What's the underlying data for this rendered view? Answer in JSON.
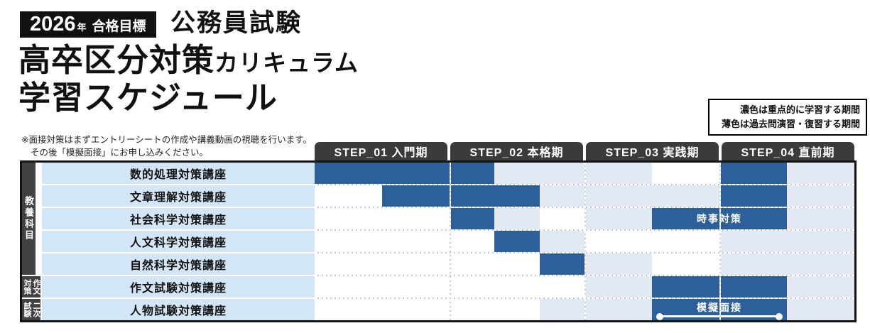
{
  "header": {
    "badge_year": "2026",
    "badge_year_unit": "年",
    "badge_goal": "合格目標",
    "exam_title": "公務員試験",
    "title_main": "高卒区分対策",
    "title_main_sub": "カリキュラム",
    "title_line2": "学習スケジュール"
  },
  "note": {
    "line1": "※面接対策はまずエントリーシートの作成や講義動画の視聴を行います。",
    "line2": "その後「模擬面接」にお申し込みください。"
  },
  "legend": {
    "line1": "濃色は重点的に学習する期間",
    "line2": "薄色は過去問演習・復習する期間"
  },
  "schedule": {
    "timeline_units": 12,
    "steps": [
      "STEP_01 入門期",
      "STEP_02 本格期",
      "STEP_03 実践期",
      "STEP_04 直前期"
    ],
    "groups": [
      {
        "label": "教養科目",
        "display": "教養科目",
        "row_span": 5,
        "columns": 1
      },
      {
        "label": "作文対策",
        "display": "作文\n対策",
        "row_span": 1,
        "columns": 2
      },
      {
        "label": "二次試験",
        "display": "二次\n試験",
        "row_span": 1,
        "columns": 2
      }
    ],
    "rows": [
      {
        "label": "数的処理対策講座",
        "segments": [
          {
            "start": 0,
            "end": 4,
            "style": "dark"
          },
          {
            "start": 4,
            "end": 7.5,
            "style": "light"
          },
          {
            "start": 9,
            "end": 10.5,
            "style": "dark"
          },
          {
            "start": 10.5,
            "end": 12,
            "style": "light"
          }
        ]
      },
      {
        "label": "文章理解対策講座",
        "segments": [
          {
            "start": 1.5,
            "end": 5,
            "style": "dark"
          },
          {
            "start": 5,
            "end": 9,
            "style": "light"
          },
          {
            "start": 9,
            "end": 10.5,
            "style": "dark"
          },
          {
            "start": 10.5,
            "end": 12,
            "style": "light"
          }
        ]
      },
      {
        "label": "社会科学対策講座",
        "segments": [
          {
            "start": 3,
            "end": 4,
            "style": "dark"
          },
          {
            "start": 4,
            "end": 5,
            "style": "light"
          },
          {
            "start": 6,
            "end": 7.5,
            "style": "light"
          },
          {
            "start": 7.5,
            "end": 10.5,
            "style": "dark",
            "label": "時事対策"
          },
          {
            "start": 10.5,
            "end": 12,
            "style": "light"
          }
        ]
      },
      {
        "label": "人文科学対策講座",
        "segments": [
          {
            "start": 4,
            "end": 5,
            "style": "dark"
          },
          {
            "start": 5,
            "end": 6,
            "style": "light"
          },
          {
            "start": 9,
            "end": 12,
            "style": "light"
          }
        ]
      },
      {
        "label": "自然科学対策講座",
        "segments": [
          {
            "start": 5,
            "end": 6,
            "style": "dark"
          },
          {
            "start": 6,
            "end": 7.5,
            "style": "light"
          },
          {
            "start": 9,
            "end": 12,
            "style": "light"
          }
        ]
      },
      {
        "label": "作文試験対策講座",
        "segments": [
          {
            "start": 6,
            "end": 7.5,
            "style": "light"
          },
          {
            "start": 7.5,
            "end": 10.5,
            "style": "dark"
          },
          {
            "start": 10.5,
            "end": 12,
            "style": "light"
          }
        ]
      },
      {
        "label": "人物試験対策講座",
        "segments": [
          {
            "start": 5,
            "end": 7.5,
            "style": "light"
          },
          {
            "start": 7.5,
            "end": 10.5,
            "style": "dark",
            "label": "模擬面接",
            "connector": true
          },
          {
            "start": 10.5,
            "end": 12,
            "style": "light"
          }
        ]
      }
    ]
  },
  "colors": {
    "bar_dark": "#2d5f9b",
    "bar_light": "#e3e9f2",
    "row_label_bg": "#d3e6f7",
    "step_header_bg": "#3b3b3b",
    "group_bg": "#424242",
    "badge_bg": "#111111"
  }
}
